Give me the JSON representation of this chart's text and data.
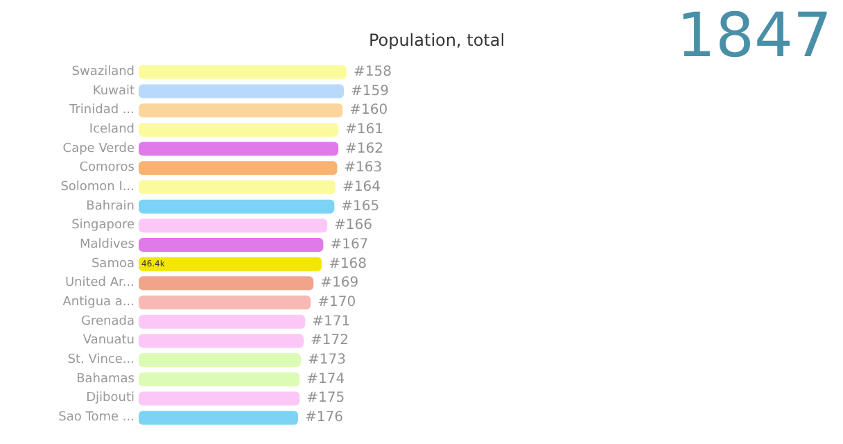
{
  "chart_data": {
    "type": "bar",
    "orientation": "horizontal",
    "title": "Population, total",
    "annotations": [
      "1847",
      "#158",
      "#159",
      "#160",
      "#161",
      "#162",
      "#163",
      "#164",
      "#165",
      "#166",
      "#167",
      "#168",
      "#169",
      "#170",
      "#171",
      "#172",
      "#173",
      "#174",
      "#175",
      "#176"
    ],
    "categories": [
      "Swaziland",
      "Kuwait",
      "Trinidad ...",
      "Iceland",
      "Cape Verde",
      "Comoros",
      "Solomon I...",
      "Bahrain",
      "Singapore",
      "Maldives",
      "Samoa",
      "United Ar...",
      "Antigua a...",
      "Grenada",
      "Vanuatu",
      "St. Vince...",
      "Bahamas",
      "Djibouti",
      "Sao Tome ..."
    ],
    "values": [
      52.7,
      52.0,
      51.7,
      50.6,
      50.6,
      50.3,
      49.9,
      49.6,
      47.8,
      46.8,
      46.4,
      44.3,
      43.6,
      42.2,
      41.8,
      41.1,
      40.8,
      40.8,
      40.4
    ],
    "colors": [
      "#fbfb9e",
      "#b9d9fb",
      "#fcd59c",
      "#fbfb9e",
      "#e07ae9",
      "#f8b371",
      "#fbfb9e",
      "#7cd3f5",
      "#fbc7f7",
      "#e07ae9",
      "#f3e600",
      "#f0a48a",
      "#f8b9b5",
      "#fbc7f7",
      "#fbc7f7",
      "#dcfbb5",
      "#dcfbb5",
      "#fbc7f7",
      "#7cd3f5"
    ],
    "value_labels": [
      null,
      null,
      null,
      null,
      null,
      null,
      null,
      null,
      null,
      null,
      "46.4k",
      null,
      null,
      null,
      null,
      null,
      null,
      null,
      null
    ]
  }
}
